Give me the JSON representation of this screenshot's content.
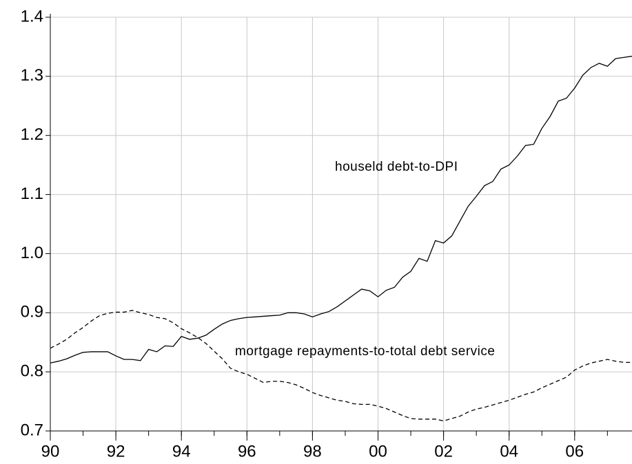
{
  "chart_data": {
    "type": "line",
    "x": [
      1990,
      1990.25,
      1990.5,
      1990.75,
      1991,
      1991.25,
      1991.5,
      1991.75,
      1992,
      1992.25,
      1992.5,
      1992.75,
      1993,
      1993.25,
      1993.5,
      1993.75,
      1994,
      1994.25,
      1994.5,
      1994.75,
      1995,
      1995.25,
      1995.5,
      1995.75,
      1996,
      1996.25,
      1996.5,
      1996.75,
      1997,
      1997.25,
      1997.5,
      1997.75,
      1998,
      1998.25,
      1998.5,
      1998.75,
      1999,
      1999.25,
      1999.5,
      1999.75,
      2000,
      2000.25,
      2000.5,
      2000.75,
      2001,
      2001.25,
      2001.5,
      2001.75,
      2002,
      2002.25,
      2002.5,
      2002.75,
      2003,
      2003.25,
      2003.5,
      2003.75,
      2004,
      2004.25,
      2004.5,
      2004.75,
      2005,
      2005.25,
      2005.5,
      2005.75,
      2006,
      2006.25,
      2006.5,
      2006.75,
      2007,
      2007.25,
      2007.5,
      2007.75
    ],
    "series": [
      {
        "name": "houseld debt-to-DPI",
        "color": "#000000",
        "dash": "solid",
        "values": [
          0.815,
          0.818,
          0.822,
          0.828,
          0.833,
          0.834,
          0.834,
          0.834,
          0.827,
          0.821,
          0.821,
          0.819,
          0.838,
          0.834,
          0.844,
          0.843,
          0.86,
          0.855,
          0.857,
          0.862,
          0.872,
          0.881,
          0.887,
          0.89,
          0.892,
          0.893,
          0.894,
          0.895,
          0.896,
          0.9,
          0.9,
          0.898,
          0.893,
          0.898,
          0.902,
          0.91,
          0.92,
          0.93,
          0.94,
          0.937,
          0.927,
          0.938,
          0.943,
          0.96,
          0.97,
          0.992,
          0.987,
          1.022,
          1.018,
          1.03,
          1.055,
          1.08,
          1.097,
          1.115,
          1.122,
          1.143,
          1.15,
          1.165,
          1.183,
          1.185,
          1.212,
          1.232,
          1.258,
          1.263,
          1.28,
          1.302,
          1.315,
          1.322,
          1.317,
          1.33,
          1.332,
          1.334
        ]
      },
      {
        "name": "mortgage repayments-to-total debt service",
        "color": "#000000",
        "dash": "dashed",
        "values": [
          0.84,
          0.847,
          0.855,
          0.866,
          0.875,
          0.886,
          0.895,
          0.899,
          0.901,
          0.901,
          0.904,
          0.9,
          0.897,
          0.892,
          0.89,
          0.883,
          0.873,
          0.866,
          0.858,
          0.848,
          0.835,
          0.822,
          0.806,
          0.8,
          0.796,
          0.789,
          0.782,
          0.784,
          0.784,
          0.782,
          0.778,
          0.772,
          0.765,
          0.76,
          0.756,
          0.752,
          0.75,
          0.746,
          0.745,
          0.745,
          0.742,
          0.738,
          0.732,
          0.726,
          0.721,
          0.72,
          0.72,
          0.72,
          0.717,
          0.721,
          0.725,
          0.732,
          0.737,
          0.74,
          0.744,
          0.748,
          0.752,
          0.757,
          0.762,
          0.766,
          0.773,
          0.779,
          0.785,
          0.791,
          0.803,
          0.81,
          0.815,
          0.818,
          0.821,
          0.818,
          0.816,
          0.816
        ]
      }
    ],
    "xlim": [
      1990,
      2007.75
    ],
    "xticks": [
      {
        "value": 1990,
        "label": "90"
      },
      {
        "value": 1992,
        "label": "92"
      },
      {
        "value": 1994,
        "label": "94"
      },
      {
        "value": 1996,
        "label": "96"
      },
      {
        "value": 1998,
        "label": "98"
      },
      {
        "value": 2000,
        "label": "00"
      },
      {
        "value": 2002,
        "label": "02"
      },
      {
        "value": 2004,
        "label": "04"
      },
      {
        "value": 2006,
        "label": "06"
      }
    ],
    "ylim": [
      0.7,
      1.4
    ],
    "yticks": [
      0.7,
      0.8,
      0.9,
      {
        "value": 1,
        "label": "1.0"
      },
      1.1,
      1.2,
      1.3,
      1.4
    ],
    "grid": true
  }
}
